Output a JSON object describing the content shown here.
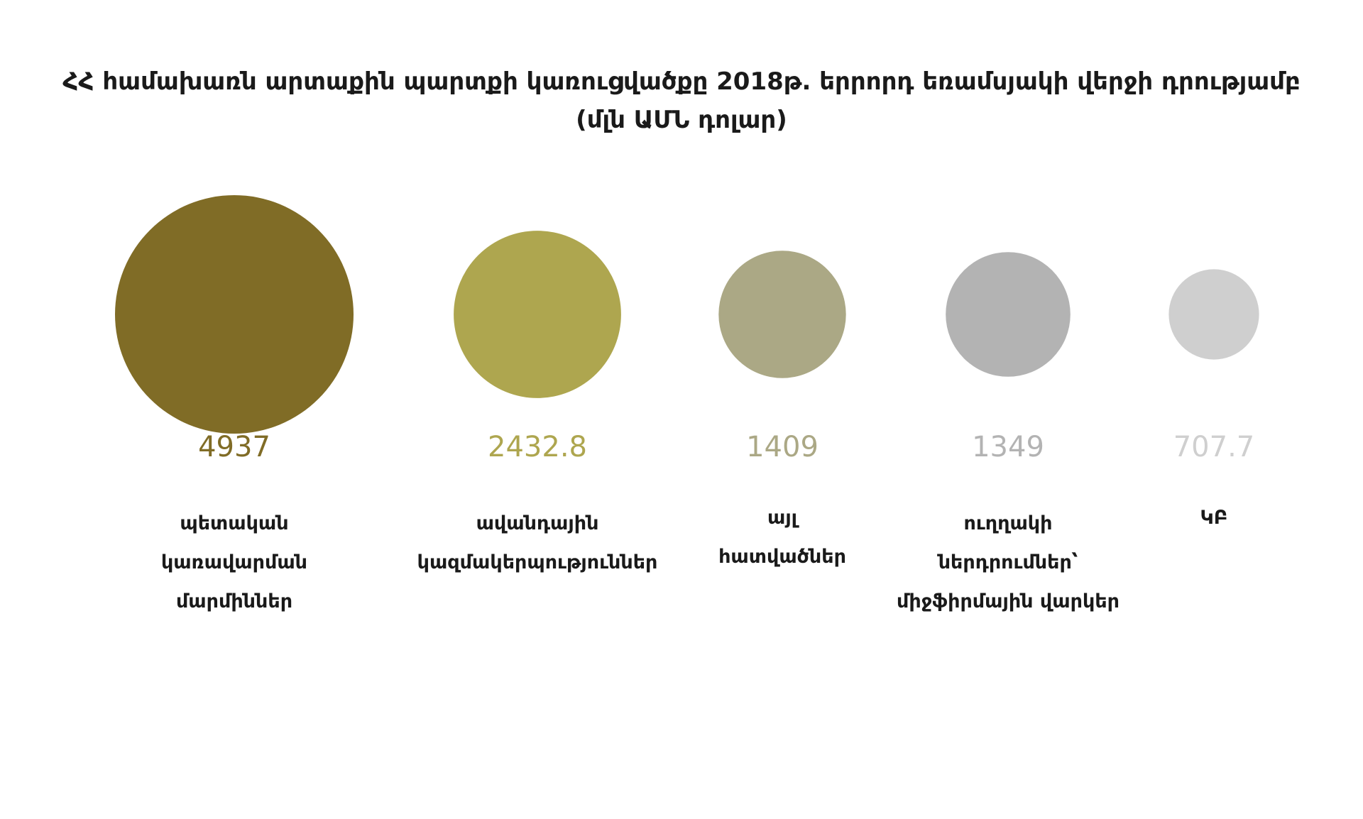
{
  "chart_data": {
    "type": "bubble",
    "title": [
      "ՀՀ համախառն արտաքին պարտքի կառուցվածքը 2018թ. երրորդ եռամսյակի վերջի դրությամբ",
      "(մլն ԱՄՆ դոլար)"
    ],
    "categories": [
      [
        "պետական",
        "կառավարման",
        "մարմիններ"
      ],
      [
        "ավանդային",
        "կազմակերպություններ"
      ],
      [
        "այլ",
        "հատվածներ"
      ],
      [
        "ուղղակի",
        "ներդրումներ՝",
        "միջֆիրմային վարկեր"
      ],
      [
        "ԿԲ"
      ]
    ],
    "values": [
      4937,
      2432.8,
      1409,
      1349,
      707.7
    ],
    "value_labels": [
      "4937",
      "2432.8",
      "1409",
      "1349",
      "707.7"
    ],
    "colors": [
      "#806c26",
      "#aea64f",
      "#aba885",
      "#b3b3b3",
      "#cfcfcf"
    ]
  }
}
